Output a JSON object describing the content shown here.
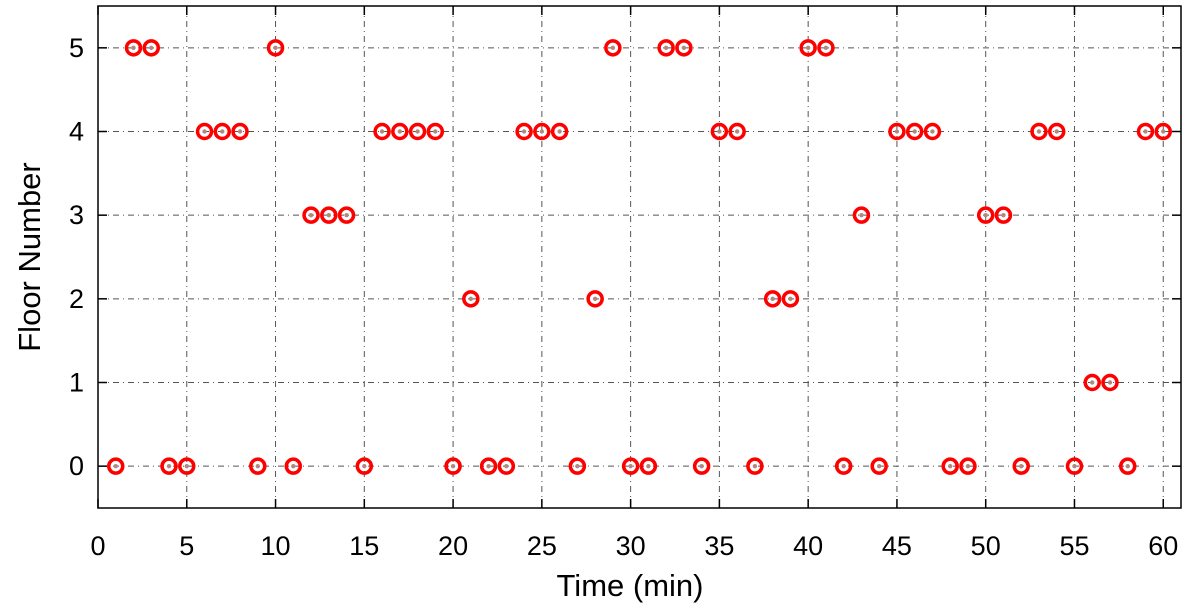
{
  "chart_data": {
    "type": "scatter",
    "title": "",
    "xlabel": "Time (min)",
    "ylabel": "Floor Number",
    "xlim": [
      0,
      61
    ],
    "ylim": [
      -0.5,
      5.5
    ],
    "xticks": [
      0,
      5,
      10,
      15,
      20,
      25,
      30,
      35,
      40,
      45,
      50,
      55,
      60
    ],
    "yticks": [
      0,
      1,
      2,
      3,
      4,
      5
    ],
    "grid": true,
    "marker_color": "#ff0000",
    "marker_center_color": "#b08a80",
    "x": [
      1,
      2,
      3,
      4,
      5,
      6,
      7,
      8,
      9,
      10,
      11,
      12,
      13,
      14,
      15,
      16,
      17,
      18,
      19,
      20,
      21,
      22,
      23,
      24,
      25,
      26,
      27,
      28,
      29,
      30,
      31,
      32,
      33,
      34,
      35,
      36,
      37,
      38,
      39,
      40,
      41,
      42,
      43,
      44,
      45,
      46,
      47,
      48,
      49,
      50,
      51,
      52,
      53,
      54,
      55,
      56,
      57,
      58,
      59,
      60
    ],
    "y": [
      0,
      5,
      5,
      0,
      0,
      4,
      4,
      4,
      0,
      5,
      0,
      3,
      3,
      3,
      0,
      4,
      4,
      4,
      4,
      0,
      2,
      0,
      0,
      4,
      4,
      4,
      0,
      2,
      5,
      0,
      0,
      5,
      5,
      0,
      4,
      4,
      0,
      2,
      2,
      5,
      5,
      0,
      3,
      0,
      4,
      4,
      4,
      0,
      0,
      3,
      3,
      0,
      4,
      4,
      0,
      1,
      1,
      0,
      4,
      4
    ]
  }
}
